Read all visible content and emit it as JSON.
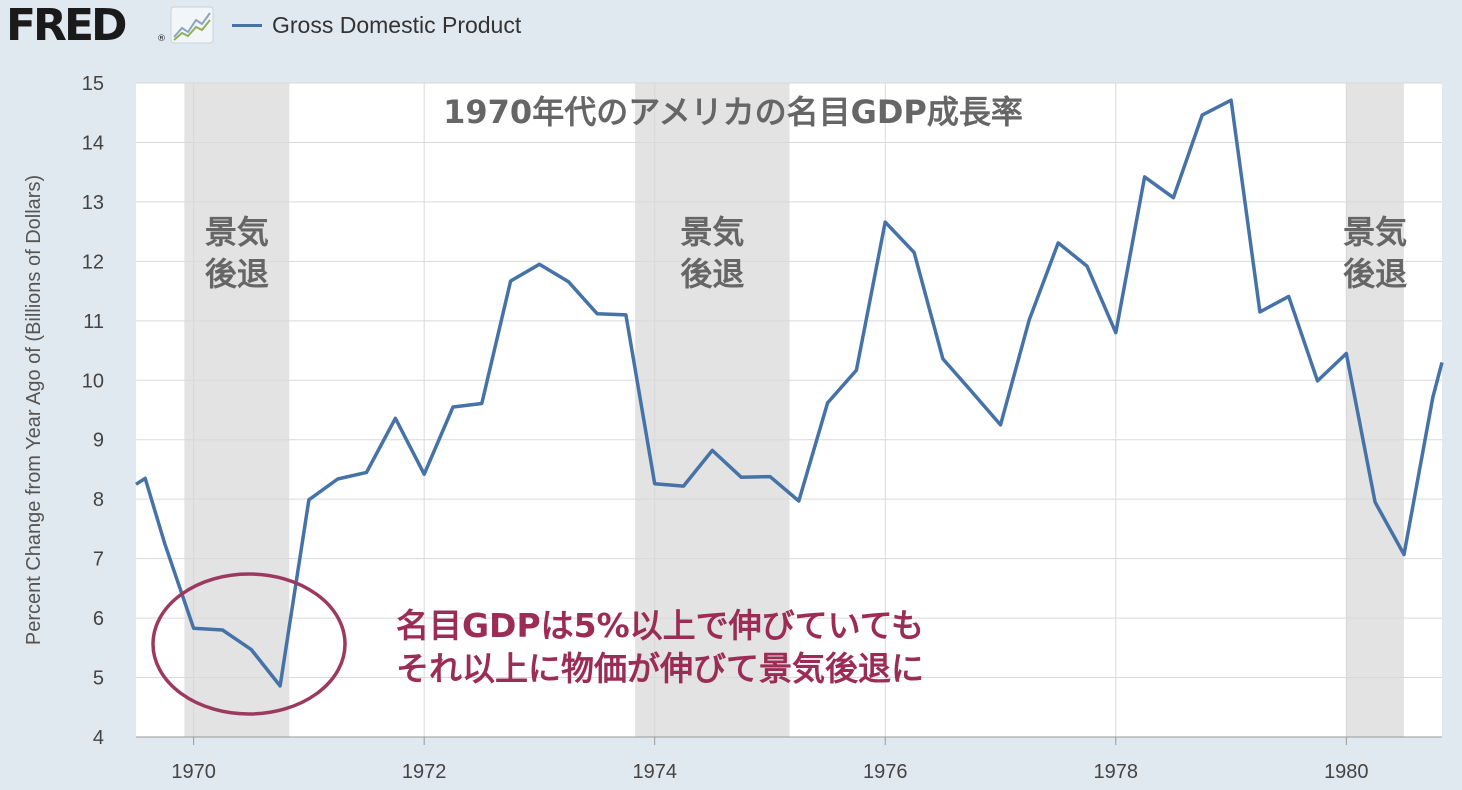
{
  "header": {
    "logo_text": "FRED",
    "logo_reg": "®",
    "logo_icon": "fred-line-chart-icon",
    "legend_label": "Gross Domestic Product",
    "legend_color": "#4572a7"
  },
  "annotations": {
    "title": "1970年代のアメリカの名目GDP成長率",
    "recession_line1": "景気",
    "recession_line2": "後退",
    "note_line1": "名目GDPは5%以上で伸びていても",
    "note_line2": "それ以上に物価が伸びて景気後退に",
    "note_color": "#9b2d55",
    "ellipse_color": "#9b3a5e"
  },
  "chart_data": {
    "type": "line",
    "title": "1970年代のアメリカの名目GDP成長率",
    "ylabel": "Percent Change from Year Ago of (Billions of Dollars)",
    "xlabel": "",
    "xlim": [
      1969.5,
      1980.83
    ],
    "ylim": [
      4,
      15
    ],
    "y_ticks": [
      4,
      5,
      6,
      7,
      8,
      9,
      10,
      11,
      12,
      13,
      14,
      15
    ],
    "x_ticks": [
      1970,
      1972,
      1974,
      1976,
      1978,
      1980
    ],
    "grid": true,
    "series_color": "#4572a7",
    "recessions": [
      [
        1969.92,
        1970.83
      ],
      [
        1973.83,
        1975.17
      ],
      [
        1980.0,
        1980.5
      ]
    ],
    "series": [
      {
        "name": "Gross Domestic Product",
        "x": [
          1969.5,
          1969.58,
          1969.75,
          1970.0,
          1970.25,
          1970.5,
          1970.75,
          1971.0,
          1971.25,
          1971.5,
          1971.75,
          1972.0,
          1972.25,
          1972.5,
          1972.75,
          1973.0,
          1973.25,
          1973.5,
          1973.75,
          1974.0,
          1974.25,
          1974.5,
          1974.75,
          1975.0,
          1975.25,
          1975.5,
          1975.75,
          1976.0,
          1976.25,
          1976.5,
          1976.75,
          1977.0,
          1977.25,
          1977.5,
          1977.75,
          1978.0,
          1978.25,
          1978.5,
          1978.75,
          1979.0,
          1979.25,
          1979.5,
          1979.75,
          1980.0,
          1980.25,
          1980.5,
          1980.75,
          1980.83
        ],
        "values": [
          8.25,
          8.35,
          7.25,
          5.83,
          5.8,
          5.47,
          4.86,
          7.99,
          8.34,
          8.45,
          9.36,
          8.42,
          9.55,
          9.61,
          11.67,
          11.95,
          11.66,
          11.12,
          11.1,
          8.26,
          8.22,
          8.82,
          8.37,
          8.38,
          7.97,
          9.62,
          10.17,
          12.66,
          12.15,
          10.36,
          9.81,
          9.25,
          11.02,
          12.31,
          11.92,
          10.8,
          13.42,
          13.07,
          14.46,
          14.71,
          11.15,
          11.41,
          9.99,
          10.45,
          7.95,
          7.07,
          9.71,
          10.3
        ]
      }
    ]
  }
}
